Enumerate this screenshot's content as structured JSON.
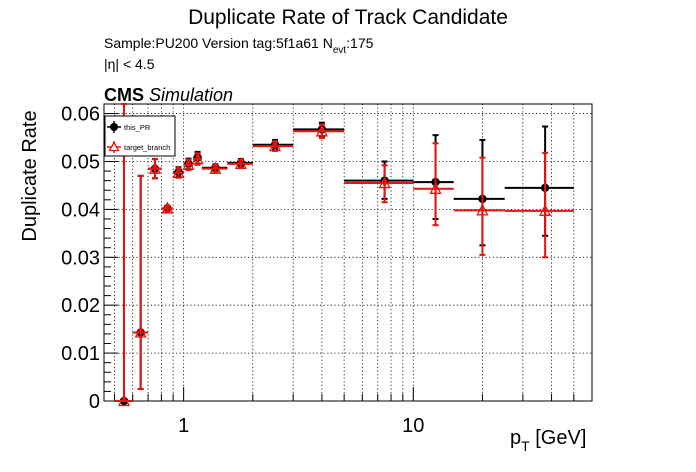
{
  "header": {
    "title": "Duplicate Rate of Track Candidate",
    "sample_line": "Sample:PU200   Version tag:5f1a61  N",
    "nevt_sub": "evt",
    "nevt_value": ":175",
    "eta_cut": "|η| < 4.5",
    "cms": "CMS",
    "simulation": "Simulation"
  },
  "legend": {
    "entries": [
      "this_PR",
      "target_branch"
    ]
  },
  "colors": {
    "this_PR": "#000000",
    "target_branch": "#e8130f"
  },
  "chart_data": {
    "type": "scatter",
    "title": "Duplicate Rate of Track Candidate",
    "xlabel_main": "p",
    "xlabel_sub": "T",
    "xlabel_unit": " [GeV]",
    "ylabel": "Duplicate Rate",
    "xscale": "log",
    "xlim": [
      0.45,
      60
    ],
    "ylim": [
      0,
      0.062
    ],
    "y_ticks": [
      0,
      0.01,
      0.02,
      0.03,
      0.04,
      0.05,
      0.06
    ],
    "y_tick_labels": [
      "0",
      "0.01",
      "0.02",
      "0.03",
      "0.04",
      "0.05",
      "0.06"
    ],
    "x_ticks": [
      1,
      10
    ],
    "x_tick_labels": [
      "1",
      "10"
    ],
    "grid": true,
    "legend_position": "top-left",
    "series": [
      {
        "name": "this_PR",
        "marker": "filled-circle",
        "points": [
          {
            "x": 0.55,
            "xlo": 0.5,
            "xhi": 0.6,
            "y": 0.0,
            "ylo": 0.0,
            "yhi": 0.062
          },
          {
            "x": 0.65,
            "xlo": 0.6,
            "xhi": 0.7,
            "y": 0.0143,
            "ylo": 0.0025,
            "yhi": 0.047
          },
          {
            "x": 0.75,
            "xlo": 0.7,
            "xhi": 0.8,
            "y": 0.0485,
            "ylo": 0.0465,
            "yhi": 0.0505
          },
          {
            "x": 0.85,
            "xlo": 0.8,
            "xhi": 0.9,
            "y": 0.0402,
            "ylo": 0.0396,
            "yhi": 0.0408
          },
          {
            "x": 0.95,
            "xlo": 0.9,
            "xhi": 1.0,
            "y": 0.0478,
            "ylo": 0.0468,
            "yhi": 0.0488
          },
          {
            "x": 1.05,
            "xlo": 1.0,
            "xhi": 1.1,
            "y": 0.0495,
            "ylo": 0.0484,
            "yhi": 0.0506
          },
          {
            "x": 1.15,
            "xlo": 1.1,
            "xhi": 1.2,
            "y": 0.0508,
            "ylo": 0.0496,
            "yhi": 0.052
          },
          {
            "x": 1.375,
            "xlo": 1.2,
            "xhi": 1.55,
            "y": 0.0487,
            "ylo": 0.048,
            "yhi": 0.0494
          },
          {
            "x": 1.775,
            "xlo": 1.55,
            "xhi": 2.0,
            "y": 0.0497,
            "ylo": 0.0489,
            "yhi": 0.0505
          },
          {
            "x": 2.5,
            "xlo": 2.0,
            "xhi": 3.0,
            "y": 0.0535,
            "ylo": 0.0525,
            "yhi": 0.0545
          },
          {
            "x": 4.0,
            "xlo": 3.0,
            "xhi": 5.0,
            "y": 0.0567,
            "ylo": 0.0553,
            "yhi": 0.0581
          },
          {
            "x": 7.5,
            "xlo": 5.0,
            "xhi": 10.0,
            "y": 0.046,
            "ylo": 0.0422,
            "yhi": 0.05
          },
          {
            "x": 12.5,
            "xlo": 10.0,
            "xhi": 15.0,
            "y": 0.0457,
            "ylo": 0.038,
            "yhi": 0.0555
          },
          {
            "x": 20.0,
            "xlo": 15.0,
            "xhi": 25.0,
            "y": 0.0422,
            "ylo": 0.0325,
            "yhi": 0.0545
          },
          {
            "x": 37.5,
            "xlo": 25.0,
            "xhi": 50.0,
            "y": 0.0445,
            "ylo": 0.0345,
            "yhi": 0.0573
          }
        ]
      },
      {
        "name": "target_branch",
        "marker": "open-triangle",
        "points": [
          {
            "x": 0.55,
            "xlo": 0.5,
            "xhi": 0.6,
            "y": 0.0,
            "ylo": 0.0,
            "yhi": 0.062
          },
          {
            "x": 0.65,
            "xlo": 0.6,
            "xhi": 0.7,
            "y": 0.0143,
            "ylo": 0.0025,
            "yhi": 0.047
          },
          {
            "x": 0.75,
            "xlo": 0.7,
            "xhi": 0.8,
            "y": 0.0485,
            "ylo": 0.0465,
            "yhi": 0.0505
          },
          {
            "x": 0.85,
            "xlo": 0.8,
            "xhi": 0.9,
            "y": 0.0402,
            "ylo": 0.0396,
            "yhi": 0.0408
          },
          {
            "x": 0.95,
            "xlo": 0.9,
            "xhi": 1.0,
            "y": 0.0476,
            "ylo": 0.0466,
            "yhi": 0.0486
          },
          {
            "x": 1.05,
            "xlo": 1.0,
            "xhi": 1.1,
            "y": 0.0493,
            "ylo": 0.0482,
            "yhi": 0.0504
          },
          {
            "x": 1.15,
            "xlo": 1.1,
            "xhi": 1.2,
            "y": 0.0505,
            "ylo": 0.0493,
            "yhi": 0.0517
          },
          {
            "x": 1.375,
            "xlo": 1.2,
            "xhi": 1.55,
            "y": 0.0485,
            "ylo": 0.0478,
            "yhi": 0.0492
          },
          {
            "x": 1.775,
            "xlo": 1.55,
            "xhi": 2.0,
            "y": 0.0495,
            "ylo": 0.0487,
            "yhi": 0.0503
          },
          {
            "x": 2.5,
            "xlo": 2.0,
            "xhi": 3.0,
            "y": 0.0532,
            "ylo": 0.0522,
            "yhi": 0.0542
          },
          {
            "x": 4.0,
            "xlo": 3.0,
            "xhi": 5.0,
            "y": 0.0563,
            "ylo": 0.0549,
            "yhi": 0.0577
          },
          {
            "x": 7.5,
            "xlo": 5.0,
            "xhi": 10.0,
            "y": 0.0455,
            "ylo": 0.0415,
            "yhi": 0.0492
          },
          {
            "x": 12.5,
            "xlo": 10.0,
            "xhi": 15.0,
            "y": 0.0443,
            "ylo": 0.0367,
            "yhi": 0.0538
          },
          {
            "x": 20.0,
            "xlo": 15.0,
            "xhi": 25.0,
            "y": 0.0398,
            "ylo": 0.0305,
            "yhi": 0.0508
          },
          {
            "x": 37.5,
            "xlo": 25.0,
            "xhi": 50.0,
            "y": 0.0397,
            "ylo": 0.03,
            "yhi": 0.0518
          }
        ]
      }
    ]
  }
}
